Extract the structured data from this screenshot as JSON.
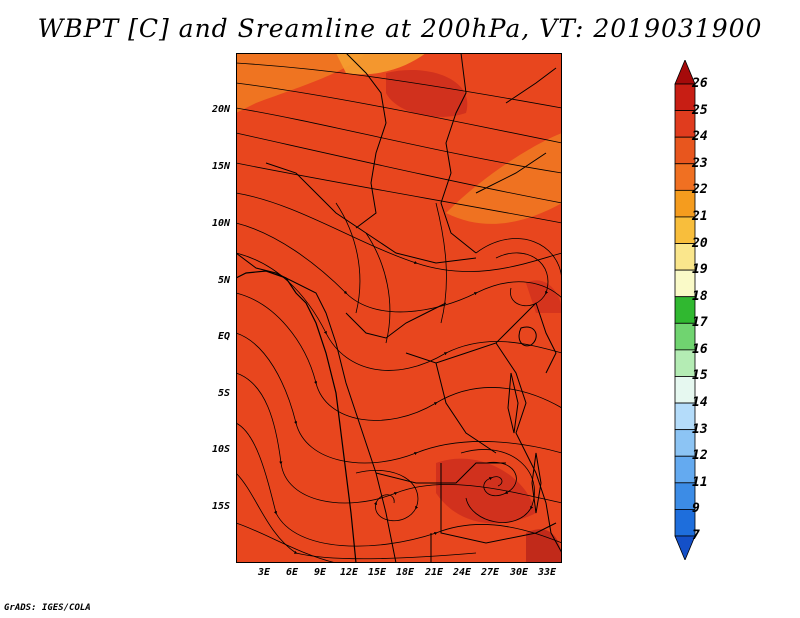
{
  "title": "WBPT [C] and Sreamline at 200hPa, VT: 2019031900",
  "credit": "GrADS: IGES/COLA",
  "map": {
    "lat_labels": [
      "20N",
      "15N",
      "10N",
      "5N",
      "EQ",
      "5S",
      "10S",
      "15S"
    ],
    "lon_labels": [
      "3E",
      "6E",
      "9E",
      "12E",
      "15E",
      "18E",
      "21E",
      "24E",
      "27E",
      "30E",
      "33E"
    ],
    "background_color": "#e8461e",
    "warm_patch_color": "#f07d22",
    "hot_patch_color": "#c8281c"
  },
  "colorbar": {
    "labels": [
      "26",
      "25",
      "24",
      "23",
      "22",
      "21",
      "20",
      "19",
      "18",
      "17",
      "16",
      "15",
      "14",
      "13",
      "12",
      "11",
      "9",
      "7"
    ],
    "colors": [
      "#a50a0a",
      "#c81e14",
      "#e03c1e",
      "#e8561e",
      "#f07022",
      "#f59c1e",
      "#f8be3c",
      "#fae68c",
      "#fafac8",
      "#30b830",
      "#70d470",
      "#b4ecb4",
      "#e6f8f0",
      "#b4dcfa",
      "#8cc4f4",
      "#64aaf0",
      "#3c8ce6",
      "#1e6edc",
      "#1450c8"
    ]
  }
}
